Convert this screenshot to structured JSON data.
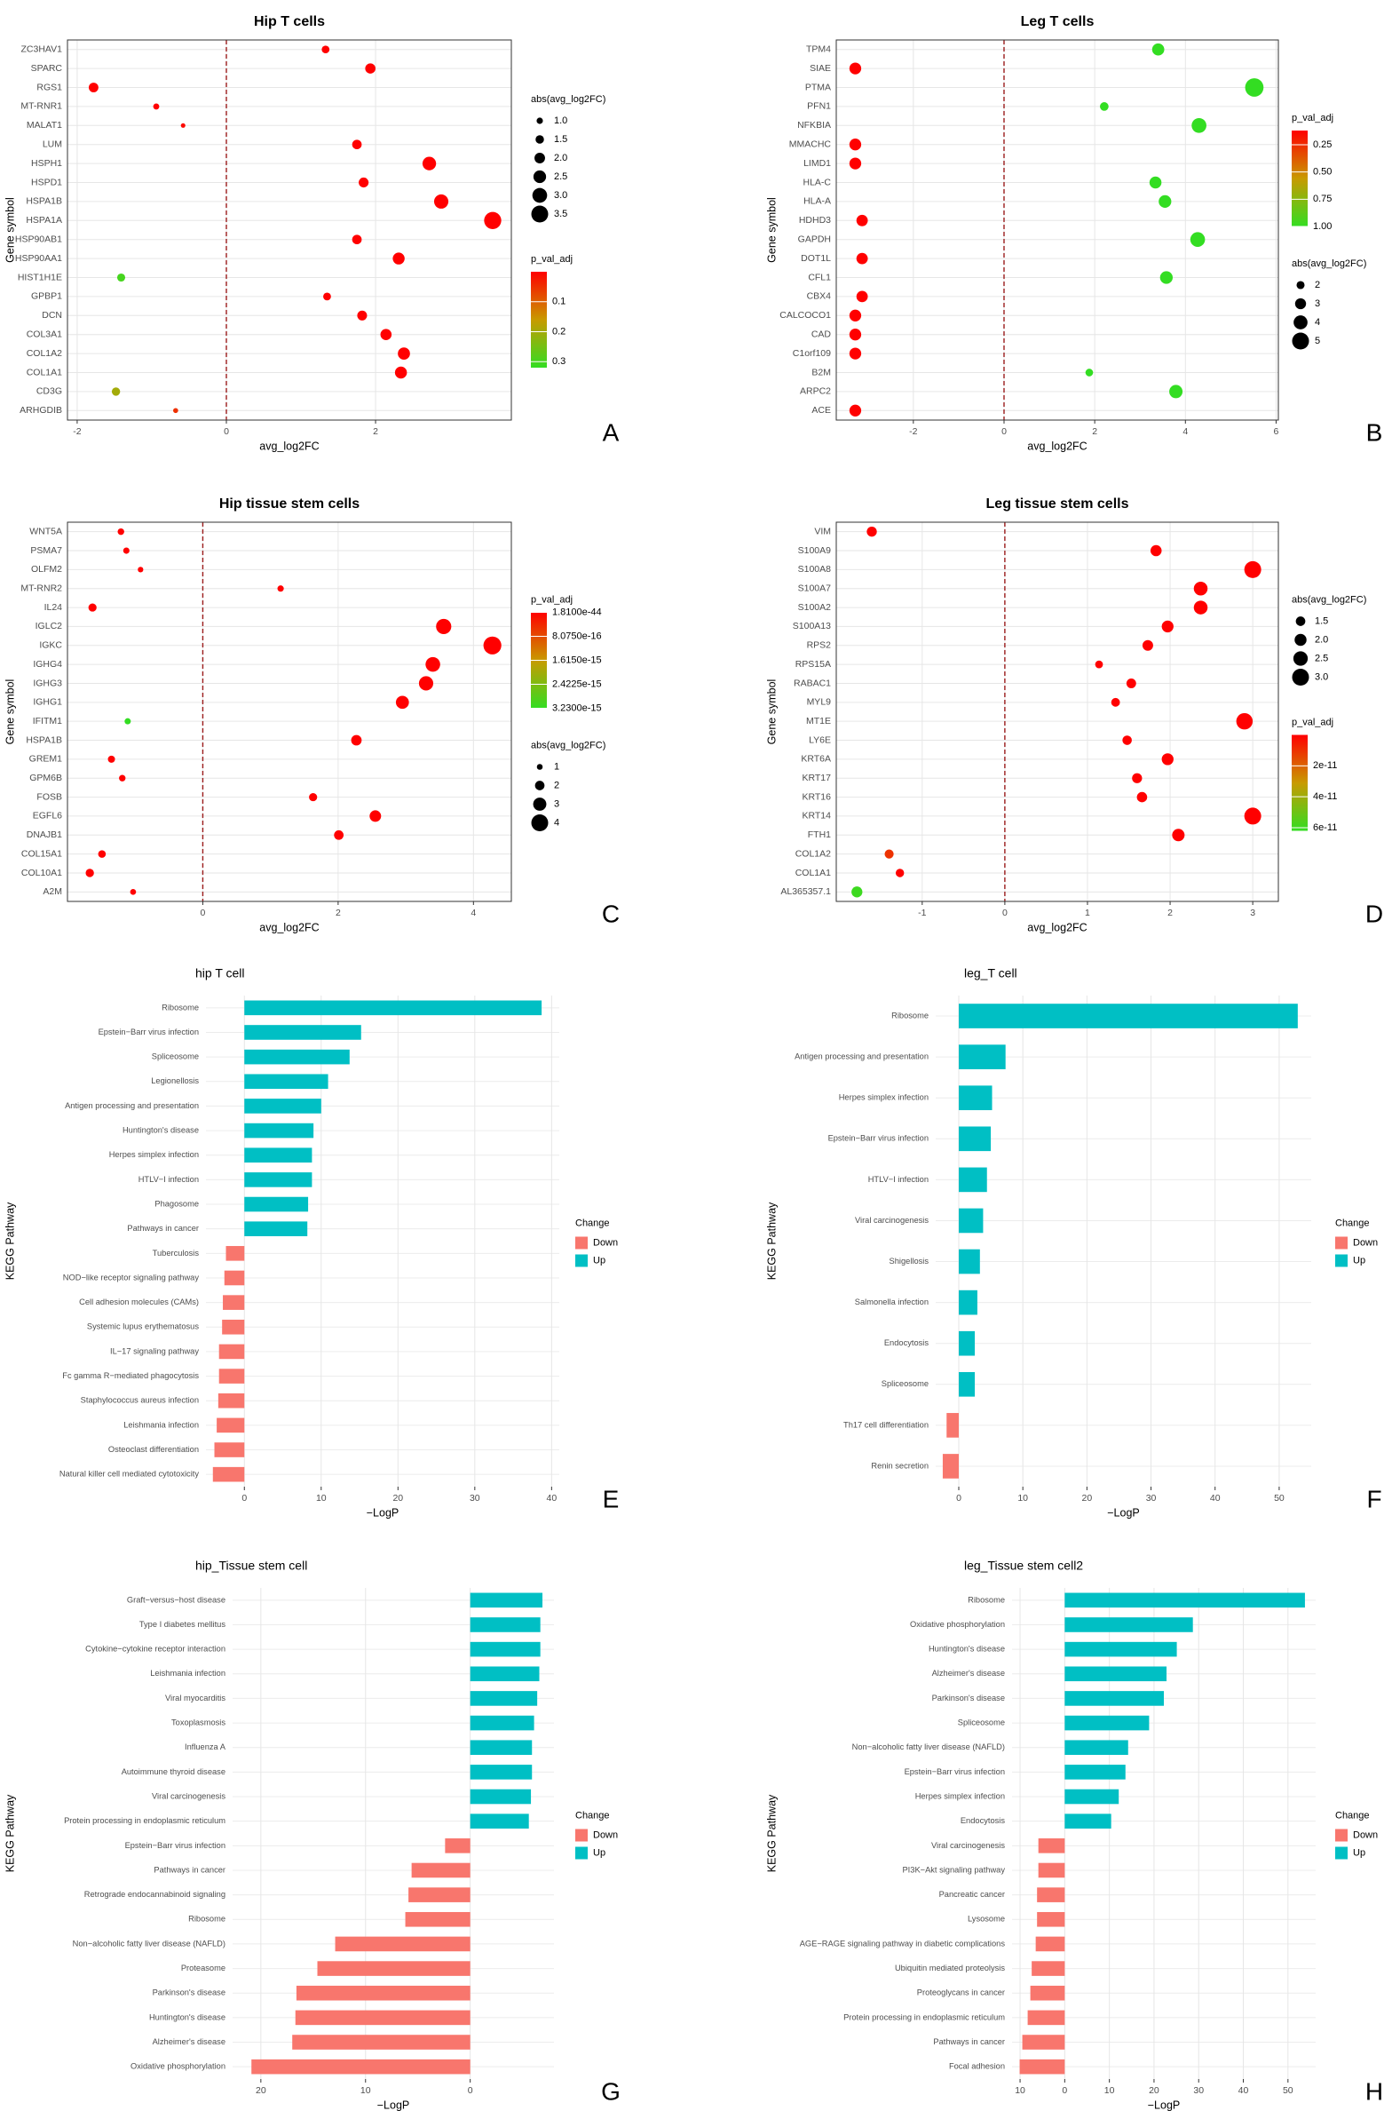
{
  "chart_data": [
    {
      "type": "dotplot",
      "panel": "A",
      "title": "Hip T cells",
      "x_label": "avg_log2FC",
      "y_label": "Gene symbol",
      "categories": [
        "ZC3HAV1",
        "SPARC",
        "RGS1",
        "MT-RNR1",
        "MALAT1",
        "LUM",
        "HSPH1",
        "HSPD1",
        "HSPA1B",
        "HSPA1A",
        "HSP90AB1",
        "HSP90AA1",
        "HIST1H1E",
        "GPBP1",
        "DCN",
        "COL3A1",
        "COL1A2",
        "COL1A1",
        "CD3G",
        "ARHGDIB"
      ],
      "values": [
        1.33,
        1.93,
        -1.78,
        -0.94,
        -0.58,
        1.75,
        2.72,
        1.84,
        2.88,
        3.57,
        1.75,
        2.31,
        -1.41,
        1.35,
        1.82,
        2.14,
        2.38,
        2.34,
        -1.48,
        -0.68
      ],
      "p_val_adj": [
        0,
        0,
        0,
        0,
        0.01,
        0,
        0,
        0,
        0,
        0,
        0,
        0,
        0.3,
        0,
        0,
        0,
        0,
        0,
        0.2,
        0.05
      ],
      "xlim": [
        -2.13,
        3.82
      ],
      "xticks": [
        -2,
        0,
        2
      ],
      "vline": 0,
      "vline_color": "#9b1c1c",
      "grid": true,
      "size_legend": {
        "title": "abs(avg_log2FC)",
        "ticks": [
          {
            "value": 1,
            "label": "1.0"
          },
          1.5,
          {
            "value": 2,
            "label": "2.0"
          },
          2.5,
          {
            "value": 3,
            "label": "3.0"
          },
          3.5
        ]
      },
      "color_legend": {
        "title": "p_val_adj",
        "lim": [
          0,
          0.32
        ],
        "ticks": [
          0.1,
          0.2,
          0.3
        ],
        "colors": [
          "#ff0000",
          "#c89a00",
          "#33dd22"
        ]
      }
    },
    {
      "type": "dotplot",
      "panel": "B",
      "title": "Leg T cells",
      "x_label": "avg_log2FC",
      "y_label": "Gene symbol",
      "categories": [
        "TPM4",
        "SIAE",
        "PTMA",
        "PFN1",
        "NFKBIA",
        "MMACHC",
        "LIMD1",
        "HLA-C",
        "HLA-A",
        "HDHD3",
        "GAPDH",
        "DOT1L",
        "CFL1",
        "CBX4",
        "CALCOCO1",
        "CAD",
        "C1orf109",
        "B2M",
        "ARPC2",
        "ACE"
      ],
      "values": [
        3.4,
        -3.28,
        5.52,
        2.21,
        4.3,
        -3.28,
        -3.28,
        3.34,
        3.55,
        -3.13,
        4.27,
        -3.13,
        3.58,
        -3.13,
        -3.28,
        -3.28,
        -3.28,
        1.88,
        3.79,
        -3.28
      ],
      "p_val_adj": [
        1,
        0.12,
        1,
        1,
        1,
        0.12,
        0.12,
        1,
        1,
        0.12,
        1,
        0.12,
        1,
        0.12,
        0.12,
        0.12,
        0.12,
        1,
        1,
        0.12
      ],
      "xlim": [
        -3.7,
        6.05
      ],
      "xticks": [
        -2,
        0,
        2,
        4,
        6
      ],
      "vline": 0,
      "vline_color": "#9b1c1c",
      "grid": true,
      "size_legend": {
        "title": "abs(avg_log2FC)",
        "ticks": [
          2,
          3,
          4,
          5
        ]
      },
      "color_legend": {
        "title": "p_val_adj",
        "lim": [
          0.12,
          1.0
        ],
        "ticks": [
          0.25,
          {
            "value": 0.5,
            "label": "0.50"
          },
          0.75,
          {
            "value": 1,
            "label": "1.00"
          }
        ],
        "colors": [
          "#ff0000",
          "#c89a00",
          "#33dd22"
        ]
      }
    },
    {
      "type": "dotplot",
      "panel": "C",
      "title": "Hip tissue stem cells",
      "x_label": "avg_log2FC",
      "y_label": "Gene symbol",
      "categories": [
        "WNT5A",
        "PSMA7",
        "OLFM2",
        "MT-RNR2",
        "IL24",
        "IGLC2",
        "IGKC",
        "IGHG4",
        "IGHG3",
        "IGHG1",
        "IFITM1",
        "HSPA1B",
        "GREM1",
        "GPM6B",
        "FOSB",
        "EGFL6",
        "DNAJB1",
        "COL15A1",
        "COL10A1",
        "A2M"
      ],
      "values": [
        -1.21,
        -1.13,
        -0.92,
        1.15,
        -1.63,
        3.56,
        4.28,
        3.4,
        3.3,
        2.95,
        -1.11,
        2.27,
        -1.35,
        -1.19,
        1.63,
        2.55,
        2.01,
        -1.49,
        -1.67,
        -1.03
      ],
      "p_val_adj": [
        1.81e-44,
        1.81e-44,
        1.81e-44,
        1.81e-44,
        1.81e-44,
        1.81e-44,
        1.81e-44,
        1.81e-44,
        1.81e-44,
        1.81e-44,
        3.23e-15,
        1.81e-44,
        1.81e-44,
        1.81e-44,
        1.81e-44,
        1.81e-44,
        1.81e-44,
        1.81e-44,
        1.81e-44,
        1.81e-44
      ],
      "xlim": [
        -2.0,
        4.56
      ],
      "xticks": [
        0,
        2,
        4
      ],
      "vline": 0,
      "vline_color": "#9b1c1c",
      "grid": true,
      "size_legend": {
        "title": "abs(avg_log2FC)",
        "ticks": [
          1,
          2,
          3,
          4
        ]
      },
      "color_legend": {
        "title": "p_val_adj",
        "lim": [
          1.81e-44,
          3.23e-15
        ],
        "ticks": [
          {
            "value": 1.81e-44,
            "label": "1.8100e-44"
          },
          {
            "value": 8.075e-16,
            "label": "8.0750e-16"
          },
          {
            "value": 1.615e-15,
            "label": "1.6150e-15"
          },
          {
            "value": 2.4225e-15,
            "label": "2.4225e-15"
          },
          {
            "value": 3.23e-15,
            "label": "3.2300e-15"
          }
        ],
        "colors": [
          "#ff0000",
          "#c89a00",
          "#33dd22"
        ]
      }
    },
    {
      "type": "dotplot",
      "panel": "D",
      "title": "Leg tissue stem cells",
      "x_label": "avg_log2FC",
      "y_label": "Gene symbol",
      "categories": [
        "VIM",
        "S100A9",
        "S100A8",
        "S100A7",
        "S100A2",
        "S100A13",
        "RPS2",
        "RPS15A",
        "RABAC1",
        "MYL9",
        "MT1E",
        "LY6E",
        "KRT6A",
        "KRT17",
        "KRT16",
        "KRT14",
        "FTH1",
        "COL1A2",
        "COL1A1",
        "AL365357.1"
      ],
      "values": [
        -1.61,
        1.83,
        3.0,
        2.37,
        2.37,
        1.97,
        1.73,
        1.14,
        1.53,
        1.34,
        2.9,
        1.48,
        1.97,
        1.6,
        1.66,
        3.0,
        2.1,
        -1.4,
        -1.27,
        -1.79
      ],
      "p_val_adj": [
        0,
        0,
        0,
        0,
        0,
        0,
        0,
        0,
        0,
        0,
        0,
        0,
        0,
        0,
        0,
        0,
        0,
        1e-11,
        0,
        6e-11
      ],
      "xlim": [
        -2.04,
        3.31
      ],
      "xticks": [
        -1,
        0,
        1,
        2,
        3
      ],
      "vline": 0,
      "vline_color": "#9b1c1c",
      "grid": true,
      "size_legend": {
        "title": "abs(avg_log2FC)",
        "ticks": [
          1.5,
          {
            "value": 2,
            "label": "2.0"
          },
          2.5,
          {
            "value": 3,
            "label": "3.0"
          }
        ]
      },
      "color_legend": {
        "title": "p_val_adj",
        "lim": [
          0,
          6.2e-11
        ],
        "ticks": [
          2e-11,
          4e-11,
          6e-11
        ],
        "colors": [
          "#ff0000",
          "#c89a00",
          "#33dd22"
        ]
      }
    },
    {
      "type": "bar",
      "panel": "E",
      "title": "hip T cell",
      "x_label": "−LogP",
      "y_label": "KEGG Pathway",
      "legend_title": "Change",
      "categories": [
        "Ribosome",
        "Epstein−Barr virus infection",
        "Spliceosome",
        "Legionellosis",
        "Antigen processing and presentation",
        "Huntington's disease",
        "Herpes simplex infection",
        "HTLV−I infection",
        "Phagosome",
        "Pathways in cancer",
        "Tuberculosis",
        "NOD−like receptor signaling pathway",
        "Cell adhesion molecules (CAMs)",
        "Systemic lupus erythematosus",
        "IL−17 signaling pathway",
        "Fc gamma R−mediated phagocytosis",
        "Staphylococcus aureus infection",
        "Leishmania infection",
        "Osteoclast differentiation",
        "Natural killer cell mediated cytotoxicity"
      ],
      "series": [
        {
          "name": "Down",
          "color": "#f8766d",
          "values": [
            null,
            null,
            null,
            null,
            null,
            null,
            null,
            null,
            null,
            null,
            -2.4,
            -2.6,
            -2.8,
            -2.9,
            -3.3,
            -3.3,
            -3.4,
            -3.6,
            -3.9,
            -4.1
          ]
        },
        {
          "name": "Up",
          "color": "#00bfc4",
          "values": [
            38.7,
            15.2,
            13.7,
            10.9,
            10.0,
            9.0,
            8.8,
            8.8,
            8.3,
            8.2,
            null,
            null,
            null,
            null,
            null,
            null,
            null,
            null,
            null,
            null
          ]
        }
      ],
      "xlim": [
        -5,
        41
      ],
      "xticks": [
        0,
        10,
        20,
        30,
        40
      ],
      "grid": true
    },
    {
      "type": "bar",
      "panel": "F",
      "title": "leg_T cell",
      "x_label": "−LogP",
      "y_label": "KEGG Pathway",
      "legend_title": "Change",
      "categories": [
        "Ribosome",
        "Antigen processing and presentation",
        "Herpes simplex infection",
        "Epstein−Barr virus infection",
        "HTLV−I infection",
        "Viral carcinogenesis",
        "Shigellosis",
        "Salmonella infection",
        "Endocytosis",
        "Spliceosome",
        "Th17 cell differentiation",
        "Renin secretion"
      ],
      "series": [
        {
          "name": "Down",
          "color": "#f8766d",
          "values": [
            null,
            null,
            null,
            null,
            null,
            null,
            null,
            null,
            null,
            null,
            -1.9,
            -2.5
          ]
        },
        {
          "name": "Up",
          "color": "#00bfc4",
          "values": [
            52.9,
            7.3,
            5.2,
            5.0,
            4.4,
            3.8,
            3.3,
            2.9,
            2.5,
            2.5,
            null,
            null
          ]
        }
      ],
      "xlim": [
        -3.6,
        55
      ],
      "xticks": [
        0,
        10,
        20,
        30,
        40,
        50
      ],
      "grid": true
    },
    {
      "type": "bar",
      "panel": "G",
      "title": "hip_Tissue stem cell",
      "x_label": "−LogP",
      "y_label": "KEGG Pathway",
      "legend_title": "Change",
      "categories": [
        "Graft−versus−host disease",
        "Type I diabetes mellitus",
        "Cytokine−cytokine receptor interaction",
        "Leishmania infection",
        "Viral myocarditis",
        "Toxoplasmosis",
        "Influenza A",
        "Autoimmune thyroid disease",
        "Viral carcinogenesis",
        "Protein processing in endoplasmic reticulum",
        "Epstein−Barr virus infection",
        "Pathways in cancer",
        "Retrograde endocannabinoid signaling",
        "Ribosome",
        "Non−alcoholic fatty liver disease (NAFLD)",
        "Proteasome",
        "Parkinson's disease",
        "Huntington's disease",
        "Alzheimer's disease",
        "Oxidative phosphorylation"
      ],
      "series": [
        {
          "name": "Down",
          "color": "#f8766d",
          "values": [
            null,
            null,
            null,
            null,
            null,
            null,
            null,
            null,
            null,
            null,
            -2.4,
            -5.6,
            -5.9,
            -6.2,
            -12.9,
            -14.6,
            -16.6,
            -16.7,
            -17.0,
            -20.9
          ]
        },
        {
          "name": "Up",
          "color": "#00bfc4",
          "values": [
            6.9,
            6.7,
            6.7,
            6.6,
            6.4,
            6.1,
            5.9,
            5.9,
            5.8,
            5.6,
            null,
            null,
            null,
            null,
            null,
            null,
            null,
            null,
            null,
            null
          ]
        }
      ],
      "xlim": [
        -22.7,
        8
      ],
      "xticks": [
        {
          "value": -20,
          "label": "20"
        },
        {
          "value": -10,
          "label": "10"
        },
        0
      ],
      "grid": true
    },
    {
      "type": "bar",
      "panel": "H",
      "title": "leg_Tissue stem cell2",
      "x_label": "−LogP",
      "y_label": "KEGG Pathway",
      "legend_title": "Change",
      "categories": [
        "Ribosome",
        "Oxidative phosphorylation",
        "Huntington's disease",
        "Alzheimer's disease",
        "Parkinson's disease",
        "Spliceosome",
        "Non−alcoholic fatty liver disease (NAFLD)",
        "Epstein−Barr virus infection",
        "Herpes simplex infection",
        "Endocytosis",
        "Viral carcinogenesis",
        "PI3K−Akt signaling pathway",
        "Pancreatic cancer",
        "Lysosome",
        "AGE−RAGE signaling pathway in diabetic complications",
        "Ubiquitin mediated proteolysis",
        "Proteoglycans in cancer",
        "Protein processing in endoplasmic reticulum",
        "Pathways in cancer",
        "Focal adhesion"
      ],
      "series": [
        {
          "name": "Down",
          "color": "#f8766d",
          "values": [
            null,
            null,
            null,
            null,
            null,
            null,
            null,
            null,
            null,
            null,
            -5.9,
            -5.9,
            -6.2,
            -6.2,
            -6.5,
            -7.4,
            -7.7,
            -8.3,
            -9.5,
            -10.1
          ]
        },
        {
          "name": "Up",
          "color": "#00bfc4",
          "values": [
            53.8,
            28.7,
            25.1,
            22.8,
            22.2,
            18.9,
            14.2,
            13.6,
            12.1,
            10.4,
            null,
            null,
            null,
            null,
            null,
            null,
            null,
            null,
            null,
            null
          ]
        }
      ],
      "xlim": [
        -11.8,
        56.2
      ],
      "xticks": [
        {
          "value": -10,
          "label": "10"
        },
        0,
        10,
        20,
        30,
        40,
        50
      ],
      "grid": true
    }
  ]
}
